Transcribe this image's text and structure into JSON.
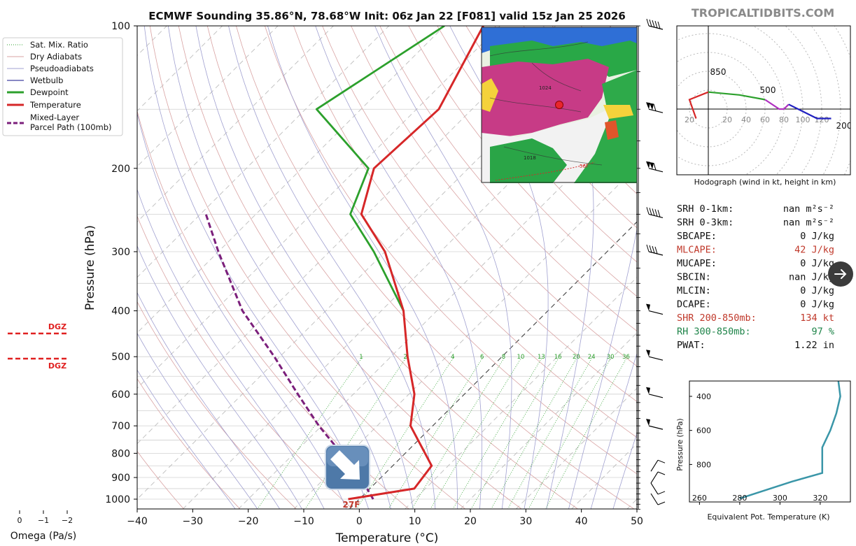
{
  "title": "ECMWF Sounding 35.86°N, 78.68°W Init: 06z Jan 22 [F081] valid 15z Jan 25 2026",
  "watermark": "TROPICALTIDBITS.COM",
  "legend": [
    "Sat. Mix. Ratio",
    "Dry Adiabats",
    "Pseudoadiabats",
    "Wetbulb",
    "Dewpoint",
    "Temperature",
    "Mixed-Layer",
    "Parcel Path (100mb)"
  ],
  "colors": {
    "temperature": "#d62728",
    "dewpoint": "#2ca02c",
    "parcel": "#7b1f7b",
    "wetbulb": "#4040a0",
    "dry_adiabat": "#d9a3a3",
    "pseudoadiabat": "#a0a0d0",
    "mixing_ratio": "#2ca02c",
    "dgz": "#e02020",
    "theta_e": "#3a96a8"
  },
  "skewt": {
    "xlabel": "Temperature (°C)",
    "ylabel": "Pressure (hPa)",
    "x_ticks": [
      "−40",
      "−30",
      "−20",
      "−10",
      "0",
      "10",
      "20",
      "30",
      "40",
      "50"
    ],
    "y_ticks": [
      "100",
      "200",
      "300",
      "400",
      "500",
      "600",
      "700",
      "800",
      "900",
      "1000"
    ],
    "surface_label": "27F",
    "mixing_ratio_labels": [
      "1",
      "2",
      "4",
      "6",
      "8",
      "10",
      "13",
      "16",
      "20",
      "24",
      "30",
      "36"
    ]
  },
  "dgz": {
    "label": "DGZ"
  },
  "omega": {
    "label": "Omega (Pa/s)",
    "ticks": [
      "0",
      "−1",
      "−2"
    ]
  },
  "hodograph": {
    "caption": "Hodograph (wind in kt, height in km)",
    "ring_labels": [
      "20",
      "20",
      "40",
      "60",
      "80",
      "100",
      "120"
    ],
    "level_labels": [
      "850",
      "500",
      "200"
    ]
  },
  "indices": [
    {
      "label": "SRH 0-1km:",
      "value": "nan m²s⁻²",
      "color": "#111111"
    },
    {
      "label": "SRH 0-3km:",
      "value": "nan m²s⁻²",
      "color": "#111111"
    },
    {
      "label": "SBCAPE:",
      "value": "0 J/kg",
      "color": "#111111"
    },
    {
      "label": "MLCAPE:",
      "value": "42 J/kg",
      "color": "#c0392b"
    },
    {
      "label": "MUCAPE:",
      "value": "0 J/kg",
      "color": "#111111"
    },
    {
      "label": "SBCIN:",
      "value": "nan J/kg",
      "color": "#111111"
    },
    {
      "label": "MLCIN:",
      "value": "0 J/kg",
      "color": "#111111"
    },
    {
      "label": "DCAPE:",
      "value": "0 J/kg",
      "color": "#111111"
    },
    {
      "label": "SHR 200-850mb:",
      "value": "134 kt",
      "color": "#c0392b"
    },
    {
      "label": "RH 300-850mb:",
      "value": "97 %",
      "color": "#1e8449"
    },
    {
      "label": "PWAT:",
      "value": "1.22 in",
      "color": "#111111"
    }
  ],
  "theta_e_panel": {
    "xlabel": "Equivalent Pot. Temperature (K)",
    "ylabel": "Pressure (hPa)",
    "x_ticks": [
      "260",
      "280",
      "300",
      "320"
    ],
    "y_ticks": [
      "400",
      "600",
      "800"
    ]
  },
  "map_inset": {
    "label_1024": "1024",
    "label_1018": "1018",
    "label_56": "56F"
  },
  "chart_data": [
    {
      "type": "line",
      "title": "ECMWF Sounding 35.86°N, 78.68°W Init: 06z Jan 22 [F081] valid 15z Jan 25 2026",
      "xlabel": "Temperature (°C)",
      "ylabel": "Pressure (hPa)",
      "xlim": [
        -40,
        50
      ],
      "ylim": [
        1050,
        100
      ],
      "yscale": "log",
      "skewed": true,
      "series": [
        {
          "name": "Temperature",
          "p": [
            1000,
            950,
            850,
            700,
            600,
            500,
            400,
            300,
            250,
            200,
            150,
            100
          ],
          "t": [
            -2,
            8,
            7,
            -4,
            -9,
            -17,
            -26,
            -40,
            -51,
            -57,
            -56,
            -63
          ]
        },
        {
          "name": "Dewpoint",
          "p": [
            400,
            300,
            250,
            200,
            150,
            100
          ],
          "t": [
            -26,
            -42,
            -53,
            -58,
            -78,
            -70
          ]
        },
        {
          "name": "Mixed-Layer Parcel Path (100mb)",
          "p": [
            1000,
            950,
            900,
            850,
            800,
            700,
            600,
            500,
            400,
            300,
            250
          ],
          "t": [
            2.5,
            -0.5,
            -3.5,
            -7,
            -11.5,
            -20.5,
            -30,
            -41,
            -55,
            -70,
            -79
          ]
        }
      ]
    },
    {
      "type": "line",
      "title": "Hodograph (wind in kt, height in km)",
      "series": [
        {
          "name": "hodograph",
          "u": [
            -13,
            -20,
            0,
            33,
            60,
            75,
            80,
            85,
            115,
            130
          ],
          "v": [
            -10,
            10,
            18,
            15,
            10,
            0,
            0,
            5,
            -10,
            -10
          ]
        }
      ]
    },
    {
      "type": "line",
      "title": "",
      "xlabel": "Equivalent Pot. Temperature (K)",
      "ylabel": "Pressure (hPa)",
      "xlim": [
        255,
        335
      ],
      "ylim": [
        1020,
        310
      ],
      "series": [
        {
          "name": "theta-e",
          "p": [
            1000,
            900,
            850,
            700,
            600,
            500,
            400,
            310
          ],
          "te": [
            280,
            306,
            321,
            321,
            325,
            328,
            330,
            329
          ]
        }
      ]
    }
  ]
}
